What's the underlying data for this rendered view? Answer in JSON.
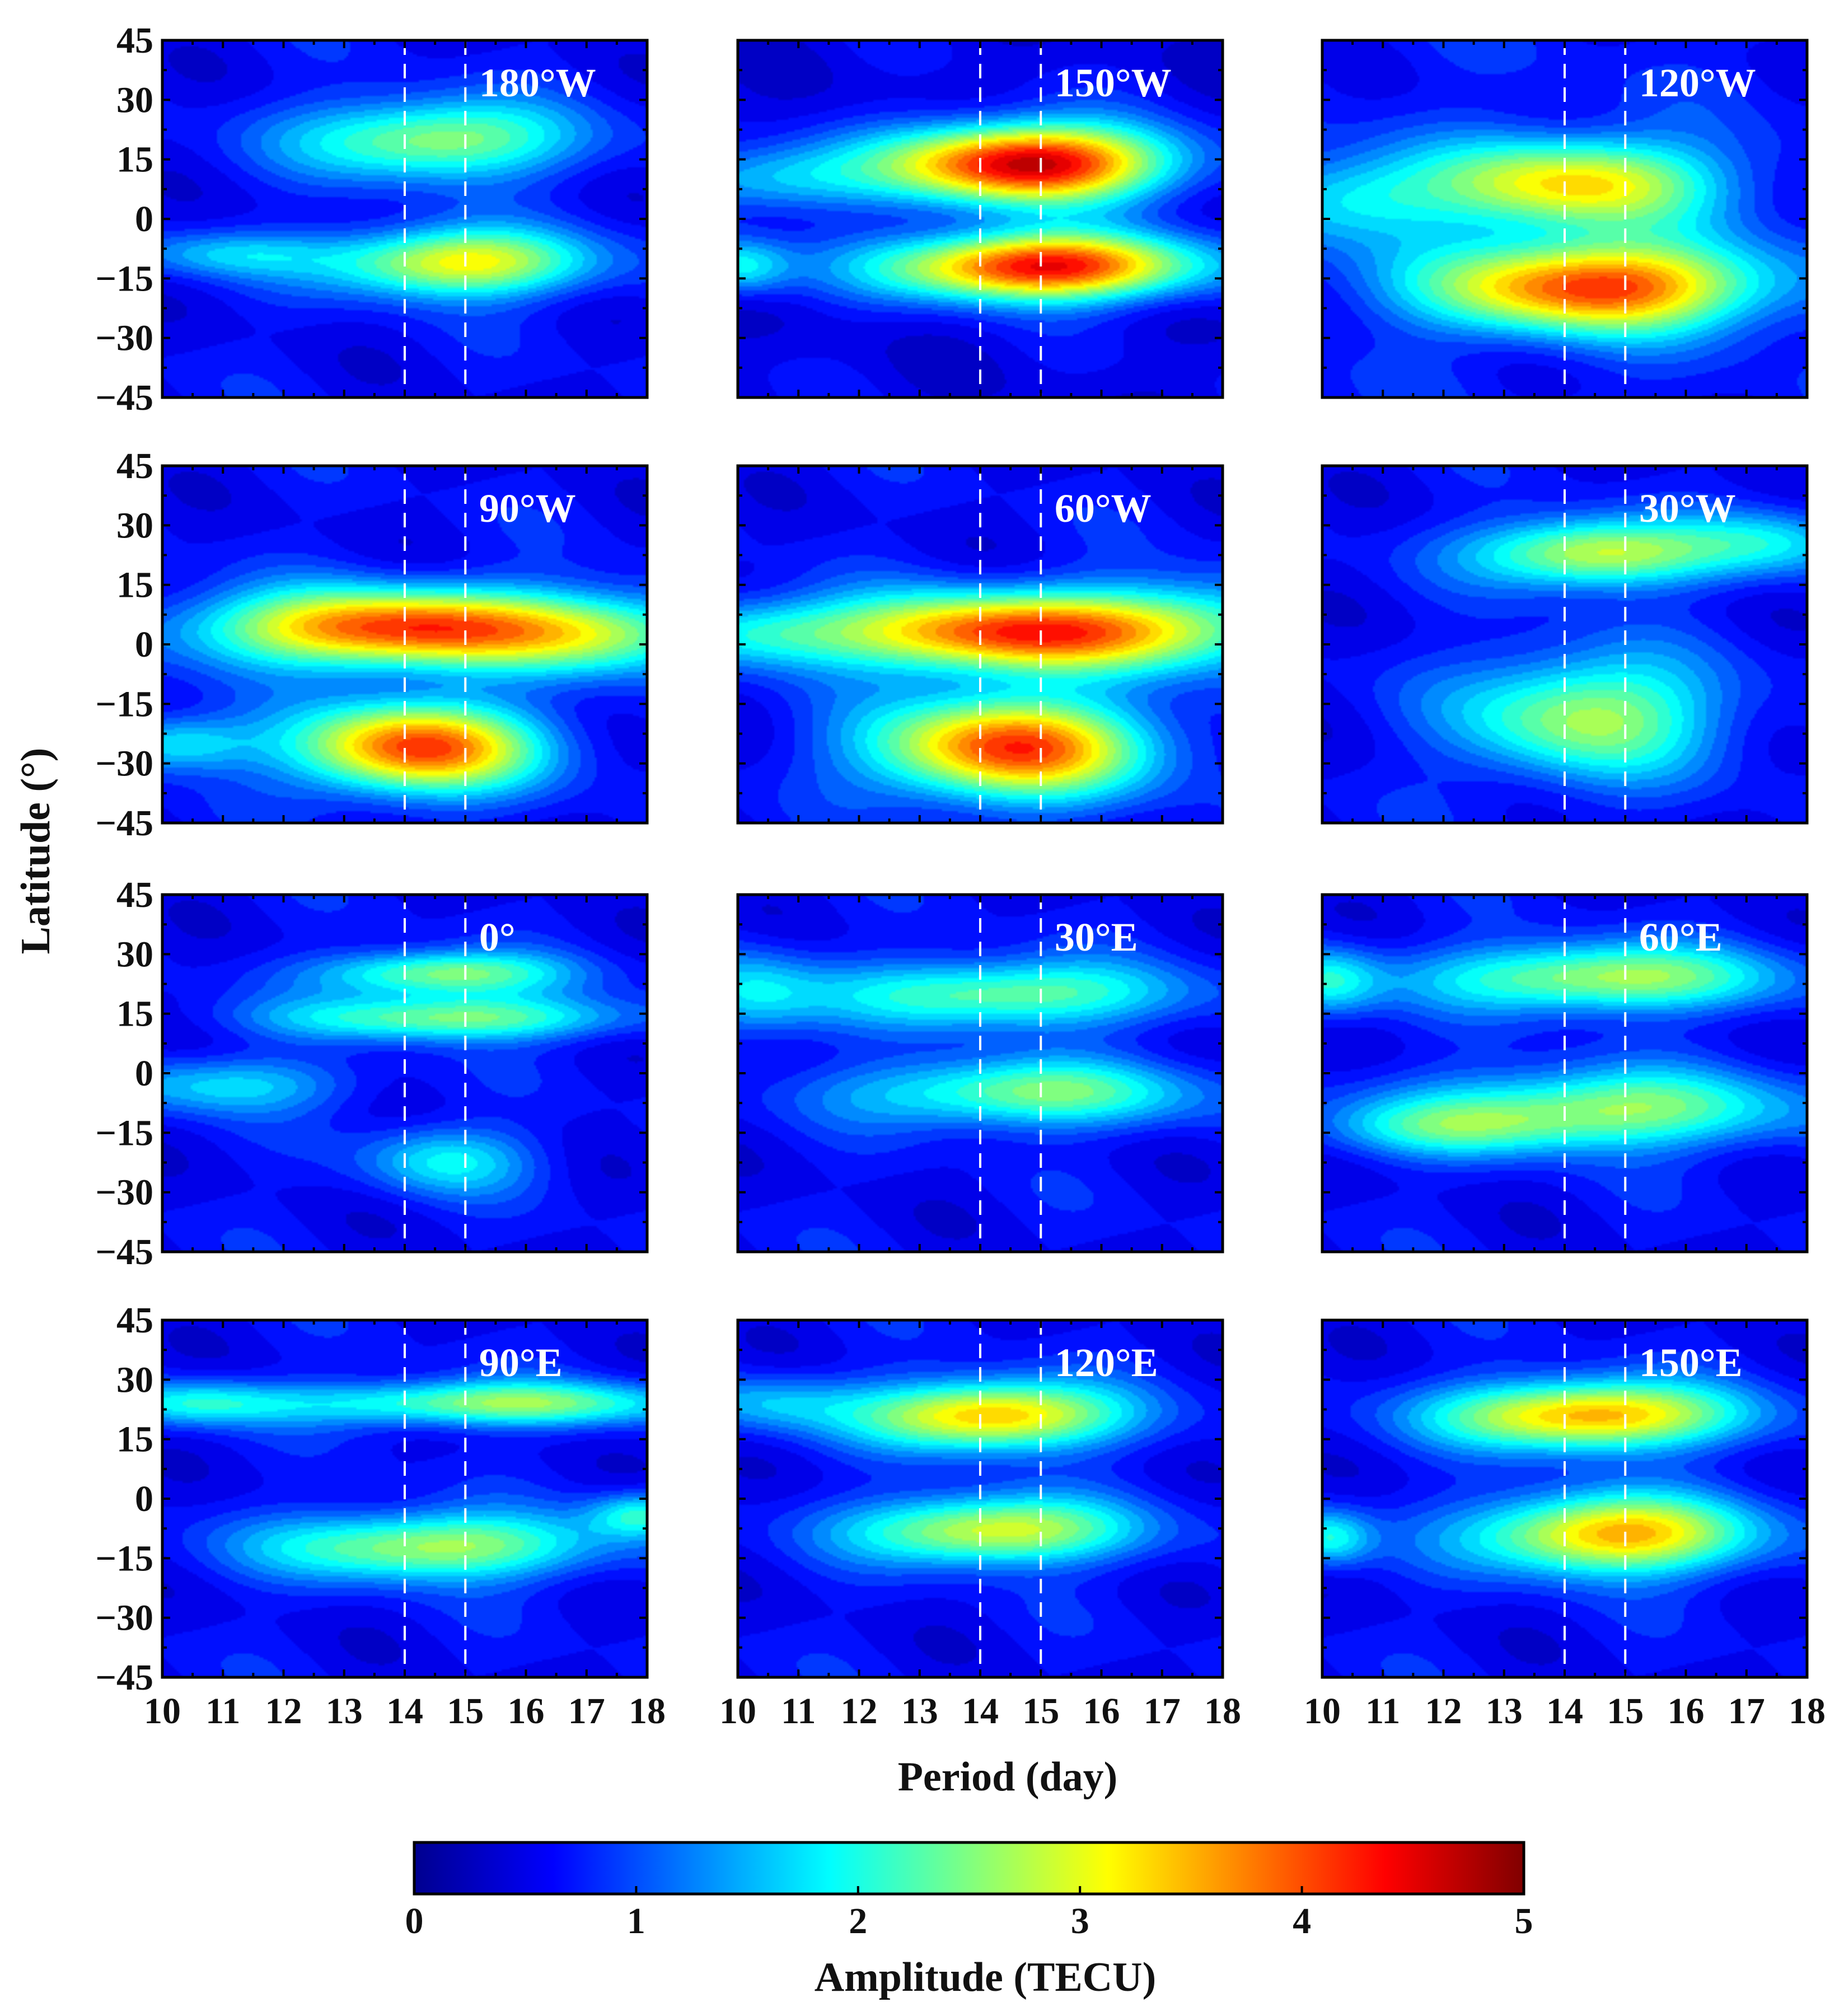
{
  "chart_data": {
    "type": "heatmap",
    "description_note": "3x4 grid of contour maps of amplitude vs period and latitude",
    "xlabel": "Period (day)",
    "ylabel": "Latitude (°)",
    "xlim": [
      10,
      18
    ],
    "ylim": [
      -45,
      45
    ],
    "x_ticks": [
      10,
      11,
      12,
      13,
      14,
      15,
      16,
      17,
      18
    ],
    "x_tick_labels": [
      "10",
      "11",
      "12",
      "13",
      "14",
      "15",
      "16",
      "17",
      "18"
    ],
    "y_ticks": [
      45,
      30,
      15,
      0,
      -15,
      -30,
      -45
    ],
    "y_tick_labels": [
      "45",
      "30",
      "15",
      "0",
      "−15",
      "−30",
      "−45"
    ],
    "dashed_lines_x": [
      14,
      15
    ],
    "colorbar": {
      "label": "Amplitude (TECU)",
      "range": [
        0,
        5
      ],
      "ticks": [
        0,
        1,
        2,
        3,
        4,
        5
      ],
      "tick_labels": [
        "0",
        "1",
        "2",
        "3",
        "4",
        "5"
      ],
      "colormap": [
        "#00008f",
        "#0000ff",
        "#0080ff",
        "#00ffff",
        "#80ff80",
        "#ffff00",
        "#ff8000",
        "#ff0000",
        "#800000"
      ]
    },
    "panels": [
      {
        "label": "180°W",
        "background": 0.6,
        "peaks": [
          {
            "period": 14.5,
            "lat": 20,
            "amp": 2.1,
            "sx": 1.6,
            "sy": 7
          },
          {
            "period": 14.9,
            "lat": -11,
            "amp": 2.6,
            "sx": 1.5,
            "sy": 6
          },
          {
            "period": 11.0,
            "lat": -9,
            "amp": 0.9,
            "sx": 1.2,
            "sy": 4
          }
        ]
      },
      {
        "label": "150°W",
        "background": 0.5,
        "peaks": [
          {
            "period": 14.8,
            "lat": 14,
            "amp": 4.3,
            "sx": 1.6,
            "sy": 7
          },
          {
            "period": 15.0,
            "lat": -12,
            "amp": 4.0,
            "sx": 1.8,
            "sy": 6
          },
          {
            "period": 10.5,
            "lat": 10,
            "amp": 1.2,
            "sx": 1.3,
            "sy": 6
          },
          {
            "period": 10.0,
            "lat": -12,
            "amp": 1.4,
            "sx": 0.6,
            "sy": 5
          }
        ]
      },
      {
        "label": "120°W",
        "background": 0.7,
        "peaks": [
          {
            "period": 14.2,
            "lat": 9,
            "amp": 2.6,
            "sx": 1.6,
            "sy": 8
          },
          {
            "period": 14.5,
            "lat": -17,
            "amp": 3.5,
            "sx": 1.9,
            "sy": 8
          },
          {
            "period": 10.5,
            "lat": 5,
            "amp": 1.2,
            "sx": 1.2,
            "sy": 8
          }
        ]
      },
      {
        "label": "90°W",
        "background": 0.6,
        "peaks": [
          {
            "period": 14.0,
            "lat": 4,
            "amp": 3.6,
            "sx": 2.3,
            "sy": 7
          },
          {
            "period": 14.2,
            "lat": -26,
            "amp": 3.5,
            "sx": 1.4,
            "sy": 8
          },
          {
            "period": 10.2,
            "lat": -25,
            "amp": 1.3,
            "sx": 0.9,
            "sy": 5
          },
          {
            "period": 17.5,
            "lat": 2,
            "amp": 1.2,
            "sx": 1.2,
            "sy": 7
          }
        ]
      },
      {
        "label": "60°W",
        "background": 0.6,
        "peaks": [
          {
            "period": 14.4,
            "lat": 3,
            "amp": 3.5,
            "sx": 2.0,
            "sy": 7
          },
          {
            "period": 14.5,
            "lat": -26,
            "amp": 3.5,
            "sx": 1.6,
            "sy": 9
          },
          {
            "period": 10.3,
            "lat": 3,
            "amp": 1.2,
            "sx": 1.2,
            "sy": 6
          },
          {
            "period": 17.5,
            "lat": 5,
            "amp": 1.3,
            "sx": 1.4,
            "sy": 8
          }
        ]
      },
      {
        "label": "30°W",
        "background": 0.6,
        "peaks": [
          {
            "period": 14.5,
            "lat": 23,
            "amp": 2.4,
            "sx": 1.4,
            "sy": 6
          },
          {
            "period": 14.4,
            "lat": -18,
            "amp": 2.1,
            "sx": 1.5,
            "sy": 11
          },
          {
            "period": 17.5,
            "lat": 26,
            "amp": 1.1,
            "sx": 1.0,
            "sy": 6
          }
        ]
      },
      {
        "label": "0°",
        "background": 0.6,
        "peaks": [
          {
            "period": 14.6,
            "lat": 25,
            "amp": 2.0,
            "sx": 1.4,
            "sy": 4
          },
          {
            "period": 14.8,
            "lat": 14,
            "amp": 1.9,
            "sx": 2.0,
            "sy": 4
          },
          {
            "period": 11.0,
            "lat": -3,
            "amp": 1.1,
            "sx": 1.5,
            "sy": 5
          },
          {
            "period": 14.7,
            "lat": -22,
            "amp": 1.2,
            "sx": 1.0,
            "sy": 6
          }
        ]
      },
      {
        "label": "30°E",
        "background": 0.6,
        "peaks": [
          {
            "period": 14.4,
            "lat": 20,
            "amp": 1.9,
            "sx": 2.0,
            "sy": 6
          },
          {
            "period": 14.7,
            "lat": -5,
            "amp": 1.9,
            "sx": 2.0,
            "sy": 6
          },
          {
            "period": 10.2,
            "lat": 20,
            "amp": 1.1,
            "sx": 0.8,
            "sy": 8
          }
        ]
      },
      {
        "label": "60°E",
        "background": 0.6,
        "peaks": [
          {
            "period": 14.6,
            "lat": 24,
            "amp": 2.2,
            "sx": 2.0,
            "sy": 6
          },
          {
            "period": 14.7,
            "lat": -9,
            "amp": 2.0,
            "sx": 2.2,
            "sy": 7
          },
          {
            "period": 10.1,
            "lat": 23,
            "amp": 1.3,
            "sx": 0.6,
            "sy": 6
          },
          {
            "period": 12.0,
            "lat": -14,
            "amp": 1.0,
            "sx": 1.5,
            "sy": 5
          }
        ]
      },
      {
        "label": "90°E",
        "background": 0.6,
        "peaks": [
          {
            "period": 15.4,
            "lat": 24,
            "amp": 2.0,
            "sx": 2.4,
            "sy": 4
          },
          {
            "period": 14.4,
            "lat": -12,
            "amp": 2.2,
            "sx": 1.9,
            "sy": 6
          },
          {
            "period": 10.5,
            "lat": 24,
            "amp": 1.2,
            "sx": 1.0,
            "sy": 4
          },
          {
            "period": 17.9,
            "lat": -4,
            "amp": 1.4,
            "sx": 0.6,
            "sy": 4
          }
        ]
      },
      {
        "label": "120°E",
        "background": 0.6,
        "peaks": [
          {
            "period": 14.2,
            "lat": 21,
            "amp": 3.0,
            "sx": 1.5,
            "sy": 6
          },
          {
            "period": 14.2,
            "lat": -8,
            "amp": 2.5,
            "sx": 1.6,
            "sy": 6
          },
          {
            "period": 10.5,
            "lat": 24,
            "amp": 0.9,
            "sx": 1.0,
            "sy": 5
          }
        ]
      },
      {
        "label": "150°E",
        "background": 0.6,
        "peaks": [
          {
            "period": 14.4,
            "lat": 21,
            "amp": 3.1,
            "sx": 1.7,
            "sy": 6
          },
          {
            "period": 14.8,
            "lat": -9,
            "amp": 3.0,
            "sx": 1.6,
            "sy": 7
          },
          {
            "period": 10.1,
            "lat": -10,
            "amp": 1.4,
            "sx": 0.5,
            "sy": 5
          }
        ]
      }
    ]
  }
}
